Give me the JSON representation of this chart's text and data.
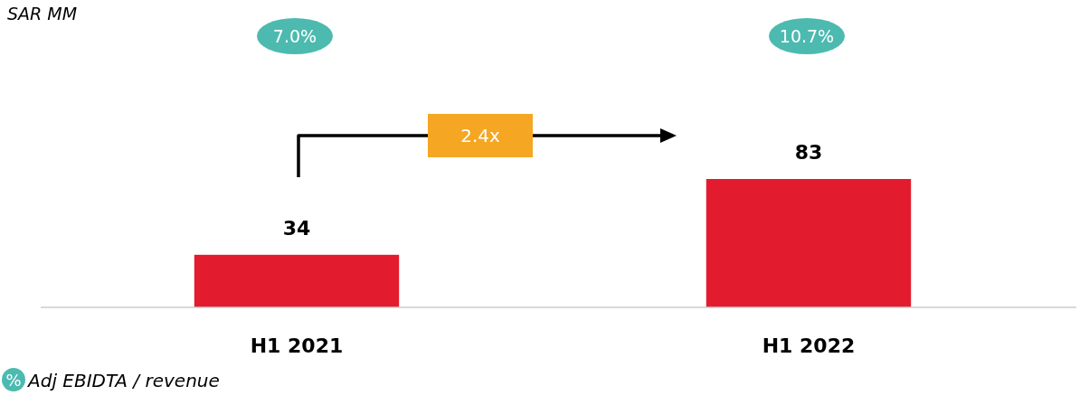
{
  "chart_data": {
    "type": "bar",
    "categories": [
      "H1 2021",
      "H1 2022"
    ],
    "values": [
      34,
      83
    ],
    "color": "#e31b2f",
    "data_labels": true,
    "annotations": [
      "SAR MM",
      "7.0%",
      "10.7%",
      "2.4x",
      "%",
      "Adj EBIDTA / revenue"
    ]
  }
}
